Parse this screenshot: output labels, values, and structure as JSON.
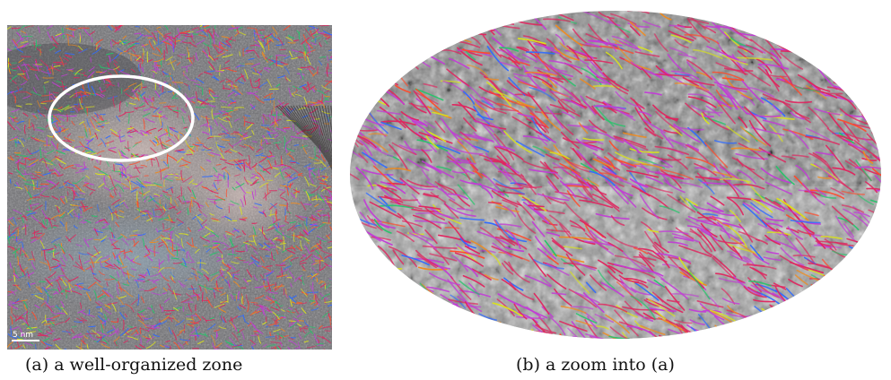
{
  "figure": {
    "panel_a": {
      "caption": "(a) a well-organized zone",
      "scale_bar_label": "5 nm"
    },
    "panel_b": {
      "caption": "(b) a zoom into (a)"
    },
    "fringe_colors": [
      "#e0245e",
      "#c23bd6",
      "#2f6bff",
      "#f08a1c",
      "#26c46a",
      "#d9e21c",
      "#ff4a2a"
    ],
    "highlight_color": "#ffffff"
  }
}
